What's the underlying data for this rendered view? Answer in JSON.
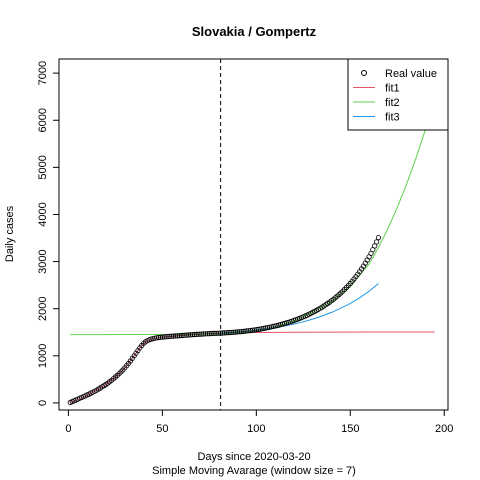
{
  "chart_data": {
    "type": "line",
    "title": "Slovakia / Gompertz",
    "xlabel": "Days since 2020-03-20",
    "xlabel2": "Simple Moving Avarage (window size = 7)",
    "ylabel": "Daily cases",
    "xlim": [
      -5,
      202
    ],
    "ylim": [
      -150,
      7300
    ],
    "x_ticks": [
      0,
      50,
      100,
      150,
      200
    ],
    "y_ticks": [
      0,
      1000,
      2000,
      3000,
      4000,
      5000,
      6000,
      7000
    ],
    "vline_x": 81,
    "legend_position": "top-right",
    "legend": [
      {
        "label": "Real value",
        "kind": "point"
      },
      {
        "label": "fit1",
        "kind": "line",
        "color": "#df536b"
      },
      {
        "label": "fit2",
        "kind": "line",
        "color": "#61d04f"
      },
      {
        "label": "fit3",
        "kind": "line",
        "color": "#2297e6"
      }
    ],
    "real_value": {
      "x": [
        1,
        2,
        3,
        4,
        5,
        6,
        7,
        8,
        9,
        10,
        11,
        12,
        13,
        14,
        15,
        16,
        17,
        18,
        19,
        20,
        21,
        22,
        23,
        24,
        25,
        26,
        27,
        28,
        29,
        30,
        31,
        32,
        33,
        34,
        35,
        36,
        37,
        38,
        39,
        40,
        41,
        42,
        43,
        44,
        45,
        46,
        47,
        48,
        49,
        50,
        51,
        52,
        53,
        54,
        55,
        56,
        57,
        58,
        59,
        60,
        61,
        62,
        63,
        64,
        65,
        66,
        67,
        68,
        69,
        70,
        71,
        72,
        73,
        74,
        75,
        76,
        77,
        78,
        79,
        80,
        81,
        82,
        83,
        84,
        85,
        86,
        87,
        88,
        89,
        90,
        91,
        92,
        93,
        94,
        95,
        96,
        97,
        98,
        99,
        100,
        101,
        102,
        103,
        104,
        105,
        106,
        107,
        108,
        109,
        110,
        111,
        112,
        113,
        114,
        115,
        116,
        117,
        118,
        119,
        120,
        121,
        122,
        123,
        124,
        125,
        126,
        127,
        128,
        129,
        130,
        131,
        132,
        133,
        134,
        135,
        136,
        137,
        138,
        139,
        140,
        141,
        142,
        143,
        144,
        145,
        146,
        147,
        148,
        149,
        150,
        151,
        152,
        153,
        154,
        155,
        156,
        157,
        158,
        159,
        160,
        161,
        162,
        163,
        164,
        165
      ],
      "y": [
        12,
        28,
        45,
        62,
        80,
        100,
        115,
        132,
        150,
        170,
        188,
        208,
        228,
        248,
        270,
        295,
        318,
        345,
        368,
        393,
        420,
        450,
        480,
        515,
        550,
        585,
        620,
        660,
        700,
        745,
        790,
        840,
        890,
        945,
        1000,
        1055,
        1110,
        1170,
        1220,
        1265,
        1295,
        1320,
        1340,
        1355,
        1365,
        1375,
        1382,
        1388,
        1393,
        1398,
        1402,
        1406,
        1410,
        1413,
        1416,
        1419,
        1422,
        1425,
        1428,
        1431,
        1434,
        1437,
        1440,
        1443,
        1446,
        1449,
        1452,
        1455,
        1457,
        1460,
        1462,
        1465,
        1467,
        1469,
        1471,
        1473,
        1475,
        1477,
        1479,
        1481,
        1483,
        1485,
        1487,
        1490,
        1492,
        1495,
        1498,
        1501,
        1504,
        1507,
        1511,
        1515,
        1519,
        1523,
        1528,
        1533,
        1538,
        1543,
        1549,
        1555,
        1561,
        1568,
        1575,
        1582,
        1590,
        1598,
        1606,
        1615,
        1624,
        1633,
        1643,
        1653,
        1664,
        1675,
        1686,
        1698,
        1710,
        1723,
        1736,
        1750,
        1764,
        1779,
        1795,
        1811,
        1828,
        1845,
        1863,
        1882,
        1901,
        1921,
        1942,
        1964,
        1987,
        2010,
        2035,
        2060,
        2086,
        2113,
        2141,
        2170,
        2200,
        2232,
        2265,
        2299,
        2334,
        2371,
        2410,
        2450,
        2492,
        2536,
        2582,
        2630,
        2680,
        2732,
        2787,
        2844,
        2904,
        2967,
        3033,
        3102,
        3175,
        3252,
        3333,
        3418,
        3510
      ]
    },
    "series": [
      {
        "name": "fit1",
        "color": "#df536b",
        "x": [
          1,
          5,
          10,
          15,
          20,
          25,
          30,
          35,
          38,
          40,
          42,
          45,
          50,
          55,
          60,
          70,
          80,
          100,
          120,
          140,
          160,
          180,
          195
        ],
        "y": [
          10,
          70,
          165,
          270,
          395,
          550,
          745,
          1000,
          1170,
          1265,
          1320,
          1365,
          1398,
          1416,
          1431,
          1460,
          1481,
          1495,
          1500,
          1503,
          1505,
          1506,
          1506
        ]
      },
      {
        "name": "fit2",
        "color": "#61d04f",
        "x": [
          1,
          20,
          40,
          60,
          70,
          80,
          90,
          100,
          110,
          120,
          130,
          140,
          150,
          160,
          165,
          170,
          175,
          180,
          185,
          190,
          195
        ],
        "y": [
          1450,
          1451,
          1452,
          1455,
          1460,
          1470,
          1490,
          1530,
          1610,
          1740,
          1920,
          2160,
          2480,
          2950,
          3300,
          3700,
          4150,
          4650,
          5200,
          5800,
          6300
        ]
      },
      {
        "name": "fit3",
        "color": "#2297e6",
        "x": [
          81,
          85,
          90,
          95,
          100,
          105,
          110,
          115,
          120,
          125,
          130,
          135,
          140,
          145,
          150,
          155,
          160,
          165
        ],
        "y": [
          1483,
          1492,
          1507,
          1523,
          1543,
          1568,
          1598,
          1633,
          1675,
          1723,
          1779,
          1845,
          1921,
          2010,
          2113,
          2232,
          2371,
          2536
        ]
      }
    ]
  }
}
